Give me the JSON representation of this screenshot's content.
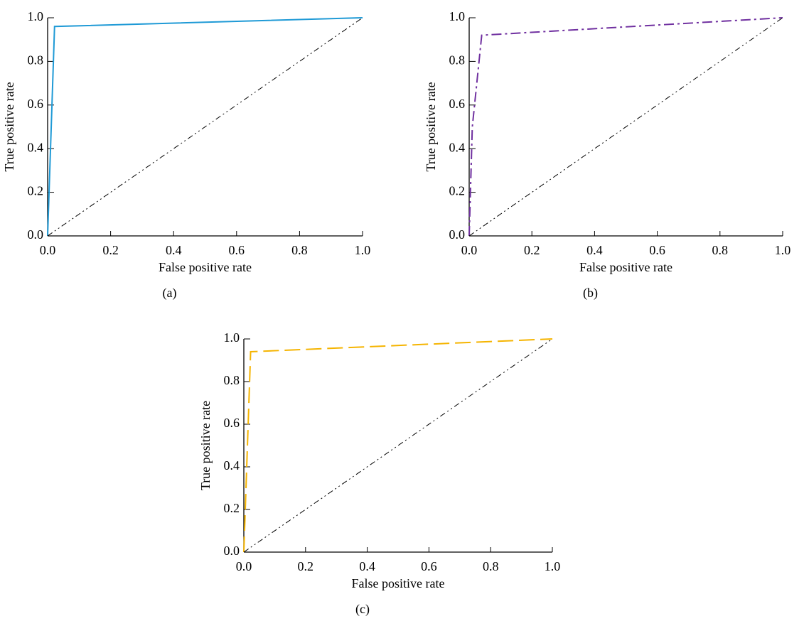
{
  "chart_data": [
    {
      "type": "line",
      "caption": "(a)",
      "xlabel": "False positive rate",
      "ylabel": "True positive rate",
      "xlim": [
        0,
        1
      ],
      "ylim": [
        0,
        1
      ],
      "xticks": [
        {
          "value": 0,
          "label": "0.0"
        },
        0.2,
        0.4,
        0.6,
        0.8,
        {
          "value": 1,
          "label": "1.0"
        }
      ],
      "yticks": [
        {
          "value": 0,
          "label": "0.0"
        },
        0.2,
        0.4,
        0.6,
        0.8,
        {
          "value": 1,
          "label": "1.0"
        }
      ],
      "series": [
        {
          "color": "#1f9ad6",
          "linestyle": "solid",
          "x": [
            0,
            0.022,
            1
          ],
          "values": [
            0,
            0.96,
            1
          ]
        },
        {
          "color": "#000000",
          "linestyle": "dashdotdot",
          "x": [
            0,
            1
          ],
          "values": [
            0,
            1
          ]
        }
      ]
    },
    {
      "type": "line",
      "caption": "(b)",
      "xlabel": "False positive rate",
      "ylabel": "True positive rate",
      "xlim": [
        0,
        1
      ],
      "ylim": [
        0,
        1
      ],
      "xticks": [
        {
          "value": 0,
          "label": "0.0"
        },
        0.2,
        0.4,
        0.6,
        0.8,
        {
          "value": 1,
          "label": "1.0"
        }
      ],
      "yticks": [
        {
          "value": 0,
          "label": "0.0"
        },
        0.2,
        0.4,
        0.6,
        0.8,
        {
          "value": 1,
          "label": "1.0"
        }
      ],
      "series": [
        {
          "color": "#7030a0",
          "linestyle": "dashdot",
          "x": [
            0,
            0.01,
            0.04,
            1
          ],
          "values": [
            0,
            0.5,
            0.92,
            1
          ]
        },
        {
          "color": "#000000",
          "linestyle": "dashdotdot",
          "x": [
            0,
            1
          ],
          "values": [
            0,
            1
          ]
        }
      ]
    },
    {
      "type": "line",
      "caption": "(c)",
      "xlabel": "False positive rate",
      "ylabel": "True positive rate",
      "xlim": [
        0,
        1
      ],
      "ylim": [
        0,
        1
      ],
      "xticks": [
        {
          "value": 0,
          "label": "0.0"
        },
        0.2,
        0.4,
        0.6,
        0.8,
        {
          "value": 1,
          "label": "1.0"
        }
      ],
      "yticks": [
        {
          "value": 0,
          "label": "0.0"
        },
        0.2,
        0.4,
        0.6,
        0.8,
        {
          "value": 1,
          "label": "1.0"
        }
      ],
      "series": [
        {
          "color": "#f5b400",
          "linestyle": "longdash",
          "x": [
            0,
            0.022,
            1
          ],
          "values": [
            0,
            0.94,
            1
          ]
        },
        {
          "color": "#000000",
          "linestyle": "dashdotdot",
          "x": [
            0,
            1
          ],
          "values": [
            0,
            1
          ]
        }
      ]
    }
  ]
}
